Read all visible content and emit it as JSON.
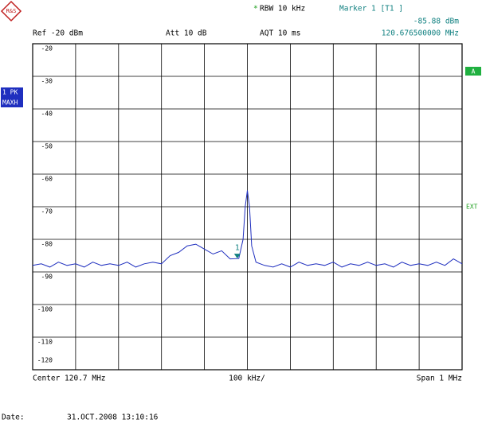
{
  "chart_data": {
    "type": "line",
    "logo": "R&S",
    "header": {
      "rbw_flag": "*",
      "rbw": "RBW 10 kHz",
      "marker_title": "Marker 1 [T1 ]",
      "ref": "Ref -20 dBm",
      "att": "Att 10 dB",
      "aqt": "AQT 10 ms"
    },
    "side": {
      "trace_mode": "1 PK",
      "detector": "MAXH",
      "trace_tag": "A",
      "ext": "EXT"
    },
    "footer": {
      "center": "Center 120.7 MHz",
      "div": "100 kHz/",
      "span": "Span 1 MHz",
      "date_label": "Date:",
      "date": "31.OCT.2008 13:10:16"
    },
    "x": [
      120.2,
      120.22,
      120.24,
      120.26,
      120.28,
      120.3,
      120.32,
      120.34,
      120.36,
      120.38,
      120.4,
      120.42,
      120.44,
      120.46,
      120.48,
      120.5,
      120.52,
      120.54,
      120.56,
      120.58,
      120.6,
      120.62,
      120.64,
      120.66,
      120.68,
      120.69,
      120.695,
      120.7,
      120.705,
      120.71,
      120.72,
      120.74,
      120.76,
      120.78,
      120.8,
      120.82,
      120.84,
      120.86,
      120.88,
      120.9,
      120.92,
      120.94,
      120.96,
      120.98,
      121.0,
      121.02,
      121.04,
      121.06,
      121.08,
      121.1,
      121.12,
      121.14,
      121.16,
      121.18,
      121.2
    ],
    "series": [
      {
        "name": "1 PK",
        "color": "#1f2fbf",
        "values": [
          -88,
          -87.5,
          -88.5,
          -87,
          -88,
          -87.5,
          -88.5,
          -87,
          -88,
          -87.5,
          -88,
          -87,
          -88.5,
          -87.5,
          -87,
          -87.5,
          -85,
          -84,
          -82,
          -81.5,
          -83,
          -84.5,
          -83.5,
          -86,
          -85.9,
          -80,
          -70,
          -65,
          -70,
          -82,
          -87,
          -88,
          -88.5,
          -87.5,
          -88.5,
          -87,
          -88,
          -87.5,
          -88,
          -87,
          -88.5,
          -87.5,
          -88,
          -87,
          -88,
          -87.5,
          -88.5,
          -87,
          -88,
          -87.5,
          -88,
          -87,
          -88,
          -86,
          -87.5
        ]
      }
    ],
    "marker": {
      "label": "1",
      "x": 120.6765,
      "y": -85.88,
      "y_label": "-85.88 dBm",
      "x_label": "120.676500000 MHz"
    },
    "xlim": [
      120.2,
      121.2
    ],
    "ylim": [
      -120,
      -20
    ],
    "yticks": [
      -20,
      -30,
      -40,
      -50,
      -60,
      -70,
      -80,
      -90,
      -100,
      -110,
      -120
    ],
    "grid": true
  }
}
